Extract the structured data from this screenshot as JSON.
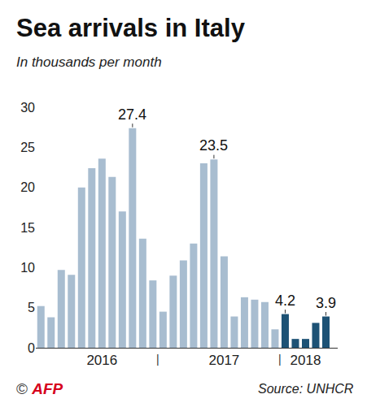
{
  "chart_data": {
    "type": "bar",
    "title": "Sea arrivals in Italy",
    "subtitle": "In thousands per month",
    "credit": "© AFP",
    "source": "Source: UNHCR",
    "categories": [
      null,
      null,
      null,
      null,
      null,
      null,
      "2016",
      null,
      null,
      null,
      null,
      null,
      null,
      null,
      null,
      null,
      null,
      null,
      "2017",
      null,
      null,
      null,
      null,
      null,
      null,
      null,
      "2018",
      null,
      null
    ],
    "values": [
      5.2,
      3.8,
      9.7,
      9.1,
      20.0,
      22.4,
      23.6,
      21.3,
      17.0,
      27.4,
      13.6,
      8.4,
      4.5,
      9.0,
      10.9,
      13.0,
      23.0,
      23.5,
      11.4,
      3.9,
      6.3,
      6.0,
      5.7,
      2.3,
      4.2,
      1.1,
      1.1,
      3.1,
      3.9
    ],
    "colors": [
      "#a8bdd0",
      "#a8bdd0",
      "#a8bdd0",
      "#a8bdd0",
      "#a8bdd0",
      "#a8bdd0",
      "#a8bdd0",
      "#a8bdd0",
      "#a8bdd0",
      "#a8bdd0",
      "#a8bdd0",
      "#a8bdd0",
      "#a8bdd0",
      "#a8bdd0",
      "#a8bdd0",
      "#a8bdd0",
      "#a8bdd0",
      "#a8bdd0",
      "#a8bdd0",
      "#a8bdd0",
      "#a8bdd0",
      "#a8bdd0",
      "#a8bdd0",
      "#a8bdd0",
      "#1d5275",
      "#1d5275",
      "#1d5275",
      "#1d5275",
      "#1d5275"
    ],
    "annotations": [
      {
        "x": 9,
        "text": "27.4"
      },
      {
        "x": 17,
        "text": "23.5"
      },
      {
        "x": 24,
        "text": "4.2"
      },
      {
        "x": 28,
        "text": "3.9"
      }
    ],
    "separators": [
      {
        "x": 11.5,
        "text": "|"
      },
      {
        "x": 23.5,
        "text": "|"
      }
    ],
    "ylim": [
      0,
      30
    ],
    "yticks": [
      0,
      5,
      10,
      15,
      20,
      25,
      30
    ],
    "grid": false
  }
}
